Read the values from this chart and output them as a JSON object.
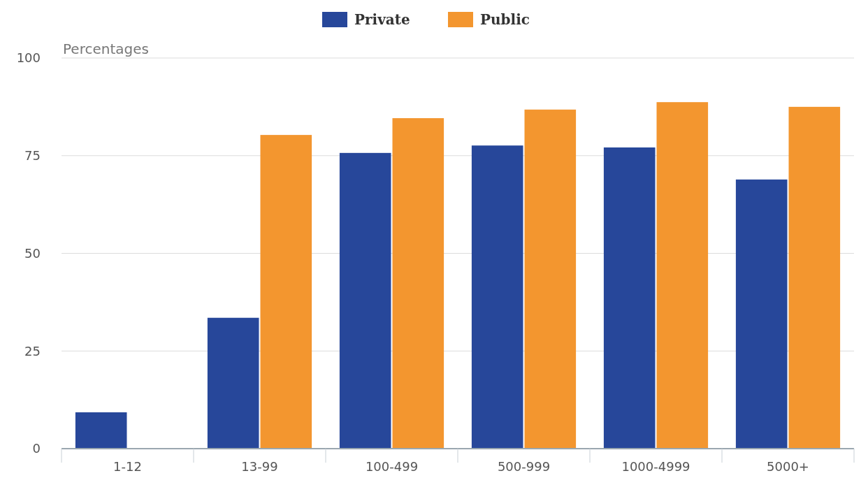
{
  "chart_data": {
    "type": "bar",
    "ylabel": "Percentages",
    "categories": [
      "1-12",
      "13-99",
      "100-499",
      "500-999",
      "1000-4999",
      "5000+"
    ],
    "series": [
      {
        "name": "Private",
        "color": "#27479a",
        "values": [
          9.3,
          33.5,
          75.7,
          77.6,
          77.1,
          68.9
        ]
      },
      {
        "name": "Public",
        "color": "#f3962f",
        "values": [
          0,
          80.3,
          84.6,
          86.8,
          88.7,
          87.5
        ]
      }
    ],
    "ylim": [
      0,
      100
    ],
    "yticks": [
      0,
      25,
      50,
      75,
      100
    ],
    "grid": "y",
    "legend": "top"
  }
}
